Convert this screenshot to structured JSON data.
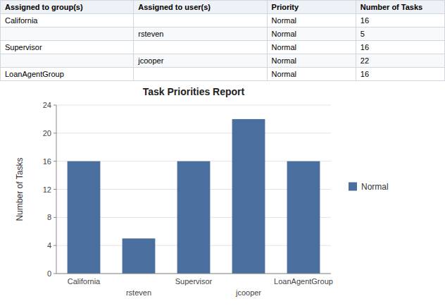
{
  "table": {
    "headers": [
      "Assigned to group(s)",
      "Assigned to user(s)",
      "Priority",
      "Number of Tasks"
    ],
    "rows": [
      [
        "California",
        null,
        "Normal",
        "16"
      ],
      [
        null,
        "rsteven",
        "Normal",
        "5"
      ],
      [
        "Supervisor",
        null,
        "Normal",
        "16"
      ],
      [
        null,
        "jcooper",
        "Normal",
        "22"
      ],
      [
        "LoanAgentGroup",
        null,
        "Normal",
        "16"
      ]
    ]
  },
  "chart_data": {
    "type": "bar",
    "title": "Task Priorities Report",
    "categories": [
      "California",
      "rsteven",
      "Supervisor",
      "jcooper",
      "LoanAgentGroup"
    ],
    "series": [
      {
        "name": "Normal",
        "color": "#4a6f9f",
        "values": [
          16,
          5,
          16,
          22,
          16
        ]
      }
    ],
    "ylabel": "Number of Tasks",
    "ylim": [
      0,
      24
    ],
    "yticks": [
      0,
      4,
      8,
      12,
      16,
      20,
      24
    ],
    "grid": true,
    "legend": "right"
  }
}
